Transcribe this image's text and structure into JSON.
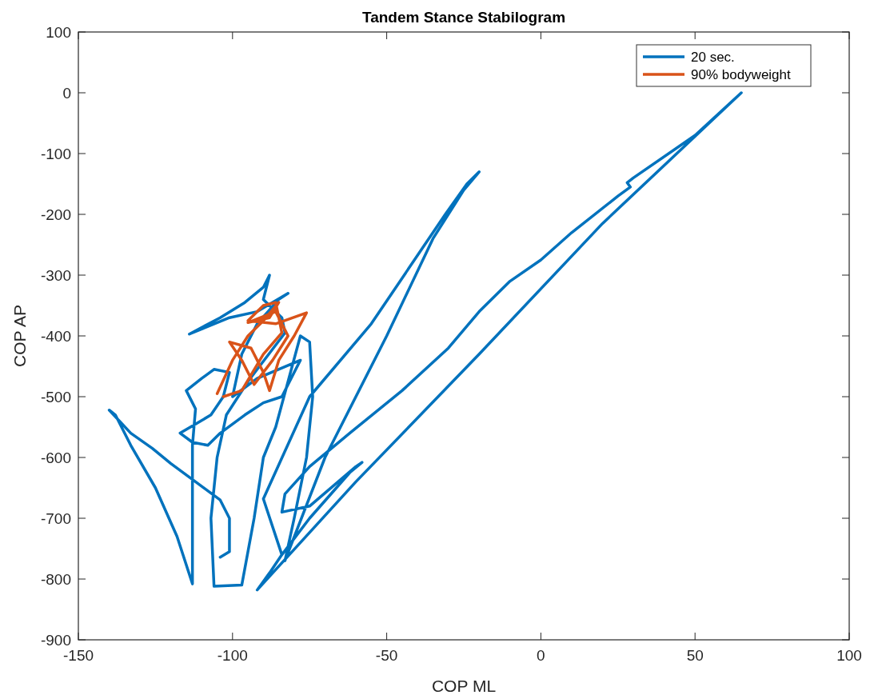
{
  "chart_data": {
    "type": "line",
    "title": "Tandem Stance Stabilogram",
    "xlabel": "COP ML",
    "ylabel": "COP AP",
    "xlim": [
      -150,
      100
    ],
    "xticks": [
      -150,
      -100,
      -50,
      0,
      50,
      100
    ],
    "ylim": [
      -900,
      100
    ],
    "yticks": [
      -900,
      -800,
      -700,
      -600,
      -500,
      -400,
      -300,
      -200,
      -100,
      0,
      100
    ],
    "grid": false,
    "legend": "top right",
    "marker": "none",
    "line_style": "solid",
    "series": [
      {
        "name": "20 sec.",
        "color": "#0072bd",
        "x": [
          -104,
          -101,
          -101,
          -104,
          -112,
          -120,
          -126,
          -133,
          -140,
          -138,
          -133,
          -125,
          -118,
          -113,
          -113,
          -113,
          -112,
          -115,
          -110,
          -106,
          -101,
          -103,
          -107,
          -112,
          -117,
          -113,
          -108,
          -104,
          -96,
          -90,
          -84,
          -78,
          -92,
          -100,
          -97,
          -92,
          -85,
          -82,
          -92,
          -101,
          -114,
          -104,
          -96,
          -90,
          -88,
          -90,
          -84,
          -83,
          -95,
          -102,
          -105,
          -107,
          -106,
          -97,
          -93,
          -90,
          -86,
          -78,
          -75,
          -74,
          -76,
          -80,
          -83,
          -70,
          -50,
          -35,
          -25,
          -20,
          -24,
          -31,
          -55,
          -75,
          -90,
          -84,
          -88,
          -92,
          -60,
          -20,
          20,
          65,
          50,
          30,
          28,
          29,
          25,
          10,
          0,
          -10,
          -20,
          -30,
          -45,
          -62,
          -75,
          -83,
          -84,
          -75,
          -60,
          -58,
          -62,
          -75,
          -84
        ],
        "values": [
          -764,
          -755,
          -700,
          -670,
          -640,
          -610,
          -585,
          -560,
          -522,
          -530,
          -580,
          -650,
          -730,
          -808,
          -700,
          -580,
          -520,
          -490,
          -470,
          -455,
          -460,
          -500,
          -530,
          -545,
          -560,
          -575,
          -580,
          -560,
          -530,
          -510,
          -500,
          -440,
          -470,
          -500,
          -430,
          -380,
          -340,
          -330,
          -360,
          -370,
          -397,
          -370,
          -345,
          -320,
          -300,
          -340,
          -370,
          -395,
          -475,
          -530,
          -600,
          -700,
          -812,
          -810,
          -700,
          -600,
          -550,
          -400,
          -410,
          -500,
          -600,
          -700,
          -770,
          -600,
          -400,
          -240,
          -160,
          -130,
          -150,
          -200,
          -380,
          -500,
          -668,
          -760,
          -790,
          -818,
          -640,
          -430,
          -215,
          0,
          -70,
          -140,
          -148,
          -155,
          -170,
          -230,
          -275,
          -310,
          -360,
          -420,
          -490,
          -560,
          -615,
          -660,
          -690,
          -680,
          -615,
          -608,
          -625,
          -700,
          -760
        ]
      },
      {
        "name": "90% bodyweight",
        "color": "#d95319",
        "x": [
          -105,
          -100,
          -95,
          -90,
          -85,
          -88,
          -95,
          -86,
          -82,
          -87,
          -93,
          -97,
          -101,
          -94,
          -90,
          -88,
          -85,
          -80,
          -76,
          -86,
          -95,
          -90,
          -86,
          -84,
          -90,
          -97,
          -103
        ],
        "values": [
          -495,
          -440,
          -400,
          -375,
          -345,
          -370,
          -378,
          -360,
          -400,
          -440,
          -480,
          -440,
          -410,
          -420,
          -460,
          -490,
          -440,
          -400,
          -362,
          -380,
          -375,
          -350,
          -345,
          -395,
          -430,
          -490,
          -500
        ]
      }
    ]
  }
}
